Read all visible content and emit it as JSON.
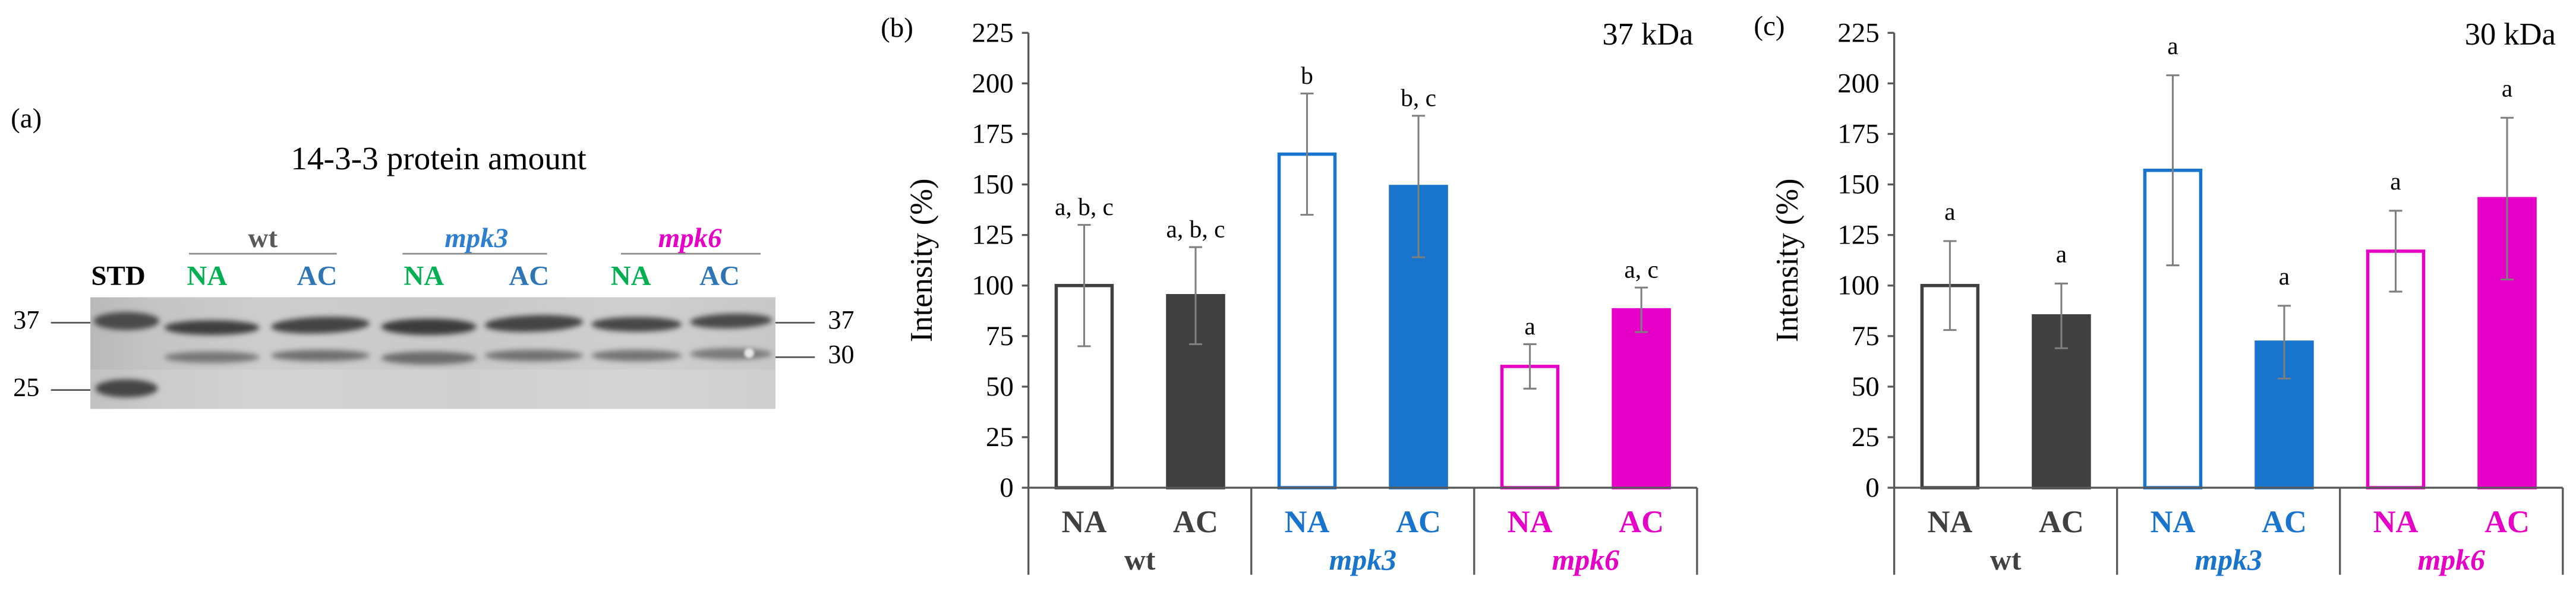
{
  "panel_a": {
    "label": "(a)",
    "title": "14-3-3 protein amount",
    "groups": [
      "wt",
      "mpk3",
      "mpk6"
    ],
    "lanes": [
      "STD",
      "NA",
      "AC",
      "NA",
      "AC",
      "NA",
      "AC"
    ],
    "markers_left": [
      "37",
      "25"
    ],
    "markers_right": [
      "37",
      "30"
    ]
  },
  "chart_data": [
    {
      "type": "bar",
      "panel_label": "(b)",
      "annotation": "37 kDa",
      "ylabel": "Intensity (%)",
      "ylim": [
        0,
        225
      ],
      "yticks": [
        0,
        25,
        50,
        75,
        100,
        125,
        150,
        175,
        200,
        225
      ],
      "grid": false,
      "groups": [
        "wt",
        "mpk3",
        "mpk6"
      ],
      "group_colors": [
        "#404040",
        "#1874CD",
        "#E600C7"
      ],
      "categories": [
        "NA",
        "AC",
        "NA",
        "AC",
        "NA",
        "AC"
      ],
      "values": [
        100,
        95,
        165,
        149,
        60,
        88
      ],
      "errors": [
        30,
        24,
        30,
        35,
        11,
        11
      ],
      "letters": [
        "a, b, c",
        "a, b, c",
        "b",
        "b, c",
        "a",
        "a, c"
      ],
      "bar_fill": [
        "#FFFFFF",
        "#404040",
        "#FFFFFF",
        "#1874CD",
        "#FFFFFF",
        "#E600C7"
      ],
      "bar_stroke": [
        "#404040",
        "#404040",
        "#1874CD",
        "#1874CD",
        "#E600C7",
        "#E600C7"
      ]
    },
    {
      "type": "bar",
      "panel_label": "(c)",
      "annotation": "30 kDa",
      "ylabel": "Intensity (%)",
      "ylim": [
        0,
        225
      ],
      "yticks": [
        0,
        25,
        50,
        75,
        100,
        125,
        150,
        175,
        200,
        225
      ],
      "grid": false,
      "groups": [
        "wt",
        "mpk3",
        "mpk6"
      ],
      "group_colors": [
        "#404040",
        "#1874CD",
        "#E600C7"
      ],
      "categories": [
        "NA",
        "AC",
        "NA",
        "AC",
        "NA",
        "AC"
      ],
      "values": [
        100,
        85,
        157,
        72,
        117,
        143
      ],
      "errors": [
        22,
        16,
        47,
        18,
        20,
        40
      ],
      "letters": [
        "a",
        "a",
        "a",
        "a",
        "a",
        "a"
      ],
      "bar_fill": [
        "#FFFFFF",
        "#404040",
        "#FFFFFF",
        "#1874CD",
        "#FFFFFF",
        "#E600C7"
      ],
      "bar_stroke": [
        "#404040",
        "#404040",
        "#1874CD",
        "#1874CD",
        "#E600C7",
        "#E600C7"
      ]
    }
  ]
}
